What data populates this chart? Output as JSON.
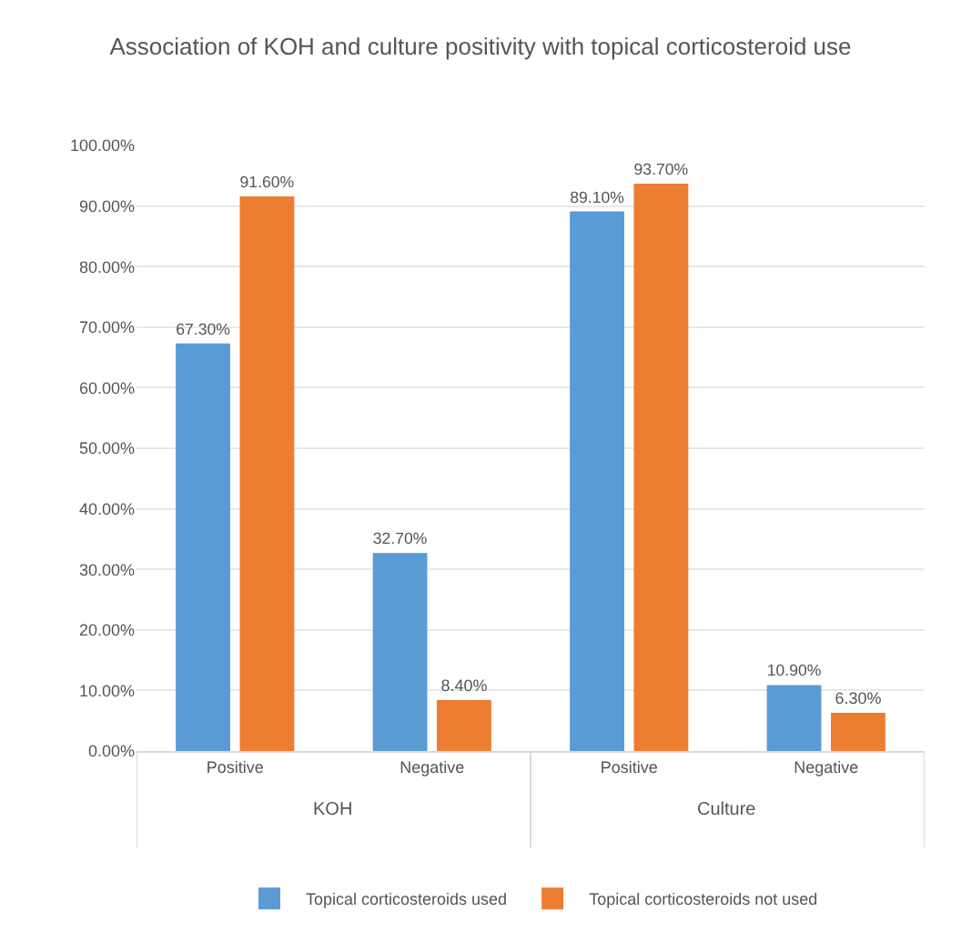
{
  "chart_data": {
    "type": "bar",
    "title": "Association of KOH and culture positivity with topical corticosteroid use",
    "categories": [
      "Positive",
      "Negative",
      "Positive",
      "Negative"
    ],
    "annotations": [
      "KOH",
      "Culture"
    ],
    "series": [
      {
        "name": "Topical corticosteroids used",
        "color": "#5b9bd5",
        "values": [
          67.3,
          32.7,
          89.1,
          10.9
        ],
        "value_labels": [
          "67.30%",
          "32.70%",
          "89.10%",
          "10.90%"
        ]
      },
      {
        "name": "Topical corticosteroids not used",
        "color": "#ed7d31",
        "values": [
          91.6,
          8.4,
          93.7,
          6.3
        ],
        "value_labels": [
          "91.60%",
          "8.40%",
          "93.70%",
          "6.30%"
        ]
      }
    ],
    "ylim": [
      0,
      100
    ],
    "yticks": [
      {
        "value": 0,
        "label": "0.00%"
      },
      {
        "value": 10,
        "label": "10.00%"
      },
      {
        "value": 20,
        "label": "20.00%"
      },
      {
        "value": 30,
        "label": "30.00%"
      },
      {
        "value": 40,
        "label": "40.00%"
      },
      {
        "value": 50,
        "label": "50.00%"
      },
      {
        "value": 60,
        "label": "60.00%"
      },
      {
        "value": 70,
        "label": "70.00%"
      },
      {
        "value": 80,
        "label": "80.00%"
      },
      {
        "value": 90,
        "label": "90.00%"
      },
      {
        "value": 100,
        "label": "100.00%"
      }
    ],
    "grid": "y",
    "legend": "bottom"
  }
}
